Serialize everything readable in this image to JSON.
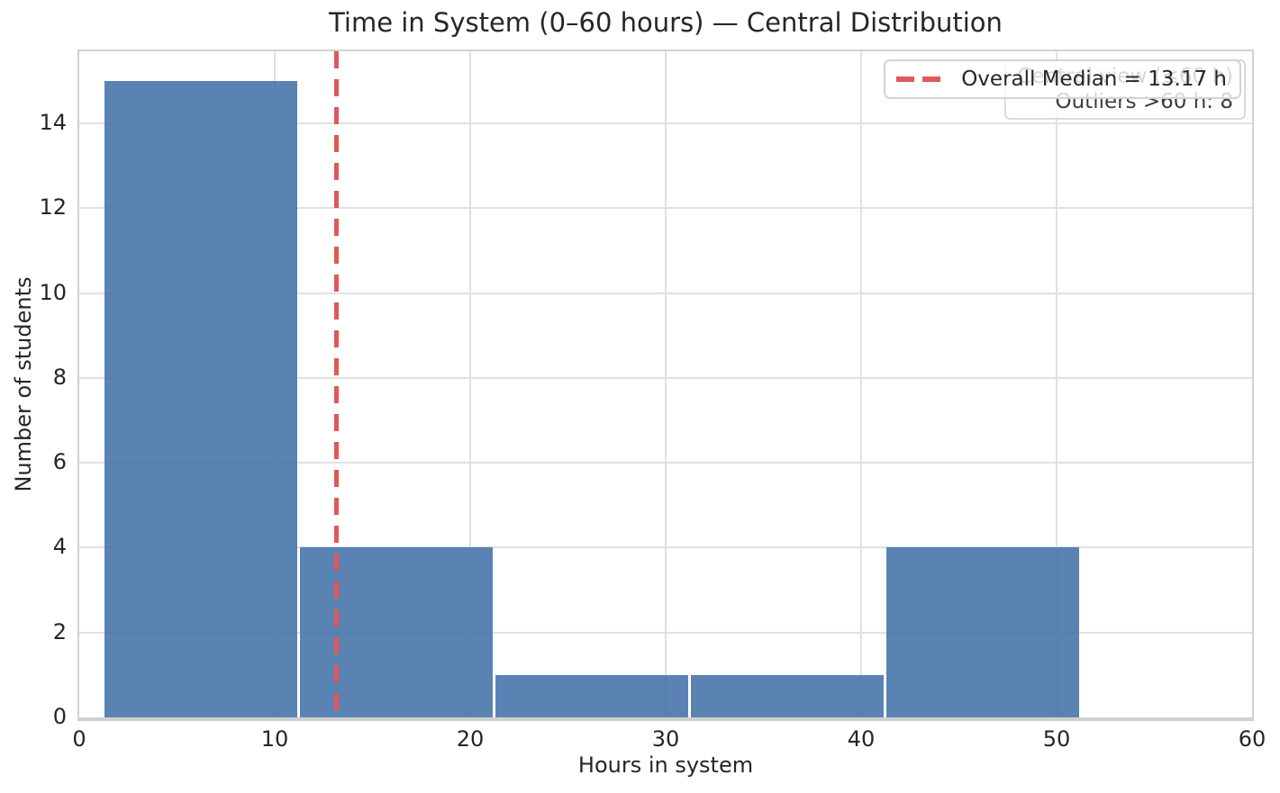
{
  "chart_data": {
    "type": "bar",
    "subtype": "histogram",
    "title": "Time in System (0–60 hours) — Central Distribution",
    "xlabel": "Hours in system",
    "ylabel": "Number of students",
    "xlim": [
      0,
      60
    ],
    "ylim": [
      0,
      15.7
    ],
    "xticks": [
      0,
      10,
      20,
      30,
      40,
      50,
      60
    ],
    "yticks": [
      0,
      2,
      4,
      6,
      8,
      10,
      12,
      14
    ],
    "bin_edges": [
      1.2,
      11.2,
      21.2,
      31.2,
      41.2,
      51.2
    ],
    "counts": [
      15,
      4,
      1,
      1,
      4
    ],
    "grid": true,
    "legend_position": "upper right",
    "median_line": {
      "value": 13.17,
      "label": "Overall Median = 13.17 h",
      "linestyle": "dashed"
    },
    "annotation": {
      "line1": "Central view (≤60 h)",
      "line2": "Outliers >60 h: 8"
    },
    "colors": {
      "bar_fill": "#4876ab",
      "bar_alpha": 0.9,
      "bar_edge": "#ffffff",
      "median_red": "#e25757",
      "gridline": "#e1e1e1",
      "spine": "#d2d2d2",
      "text": "#262626",
      "annotation_text": "#3a3a3a"
    }
  }
}
